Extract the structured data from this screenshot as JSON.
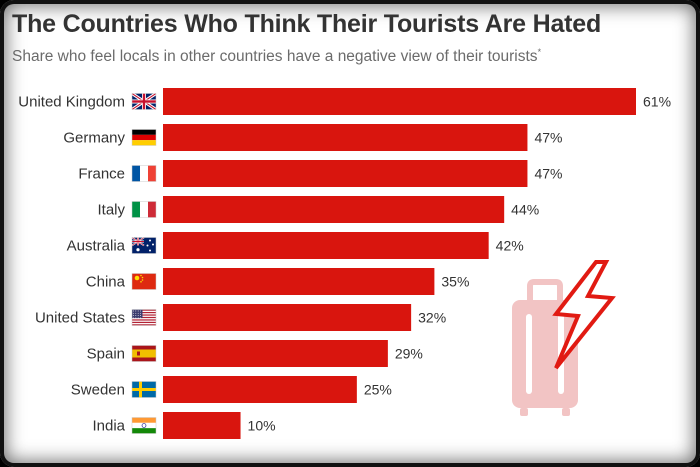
{
  "header": {
    "title": "The Countries Who Think Their Tourists Are Hated",
    "subtitle": "Share who feel locals in other countries have a negative view of their tourists",
    "subtitle_mark": "*"
  },
  "colors": {
    "bar": "#d9150e",
    "text": "#333333",
    "subtitle": "#6b6b6b",
    "icon": "#f2c4c4"
  },
  "chart_data": {
    "type": "bar",
    "orientation": "horizontal",
    "title": "The Countries Who Think Their Tourists Are Hated",
    "subtitle": "Share who feel locals in other countries have a negative view of their tourists*",
    "categories": [
      "United Kingdom",
      "Germany",
      "France",
      "Italy",
      "Australia",
      "China",
      "United States",
      "Spain",
      "Sweden",
      "India"
    ],
    "values": [
      61,
      47,
      47,
      44,
      42,
      35,
      32,
      29,
      25,
      10
    ],
    "value_labels": [
      "61%",
      "47%",
      "47%",
      "44%",
      "42%",
      "35%",
      "32%",
      "29%",
      "25%",
      "10%"
    ],
    "flags": [
      "gb",
      "de",
      "fr",
      "it",
      "au",
      "cn",
      "us",
      "es",
      "se",
      "in"
    ],
    "unit": "%",
    "xlim": [
      0,
      61
    ],
    "grid": false,
    "legend": "none",
    "decoration": "suitcase-with-lightning-icon"
  }
}
